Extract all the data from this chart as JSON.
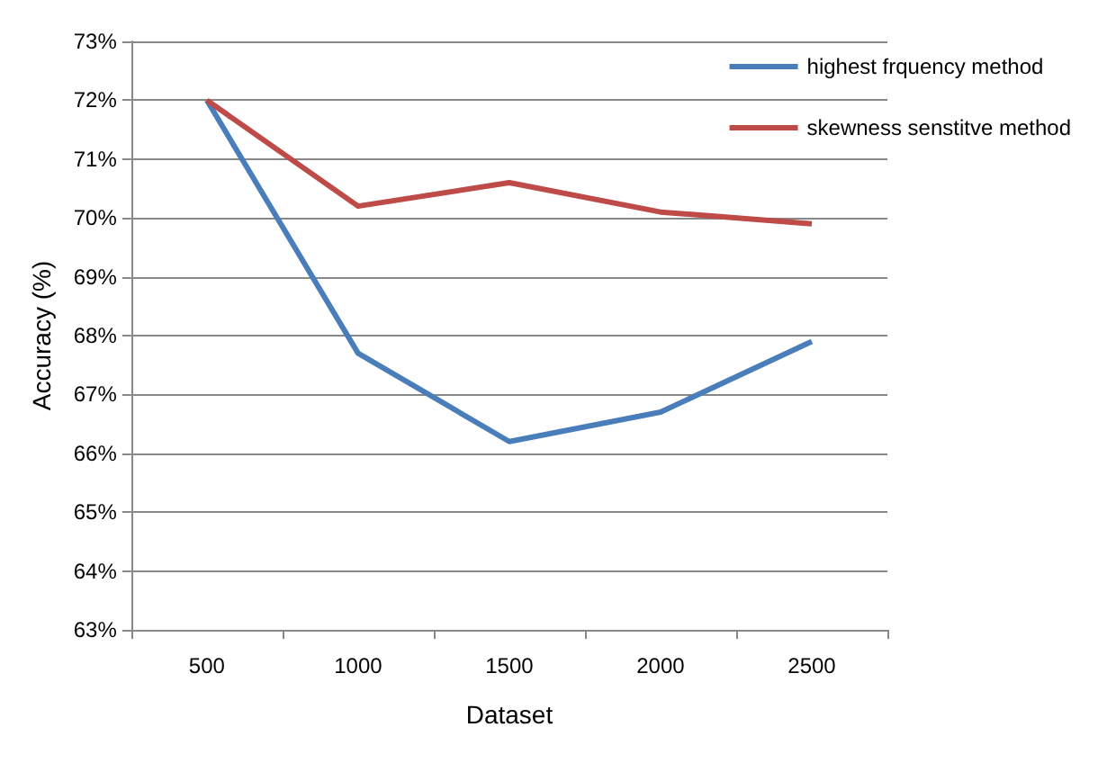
{
  "chart_data": {
    "type": "line",
    "xlabel": "Dataset",
    "ylabel": "Accuracy (%)",
    "categories": [
      "500",
      "1000",
      "1500",
      "2000",
      "2500"
    ],
    "series": [
      {
        "name": "highest frquency method",
        "color": "#4a7ebb",
        "values": [
          72,
          67.7,
          66.2,
          66.7,
          67.9
        ]
      },
      {
        "name": "skewness senstitve method",
        "color": "#be4b48",
        "values": [
          72,
          70.2,
          70.6,
          70.1,
          69.9
        ]
      }
    ],
    "ylim": [
      63,
      73
    ],
    "yticks": [
      {
        "value": 63,
        "label": "63%"
      },
      {
        "value": 64,
        "label": "64%"
      },
      {
        "value": 65,
        "label": "65%"
      },
      {
        "value": 66,
        "label": "66%"
      },
      {
        "value": 67,
        "label": "67%"
      },
      {
        "value": 68,
        "label": "68%"
      },
      {
        "value": 69,
        "label": "69%"
      },
      {
        "value": 70,
        "label": "70%"
      },
      {
        "value": 71,
        "label": "71%"
      },
      {
        "value": 72,
        "label": "72%"
      },
      {
        "value": 73,
        "label": "73%"
      }
    ],
    "grid": "y",
    "legend": "top right",
    "marker": "none",
    "line_style": "solid"
  }
}
